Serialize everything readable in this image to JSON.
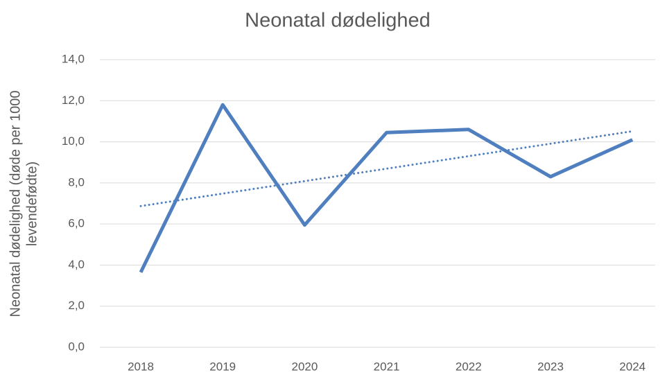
{
  "chart_data": {
    "type": "line",
    "title": "Neonatal dødelighed",
    "ylabel": [
      "Neonatal dødelighed (døde per 1000",
      "levendefødte)"
    ],
    "categories": [
      "2018",
      "2019",
      "2020",
      "2021",
      "2022",
      "2023",
      "2024"
    ],
    "series": [
      {
        "color": "#4f7fbf",
        "values": [
          3.65,
          11.8,
          5.95,
          10.45,
          10.6,
          8.3,
          10.1
        ]
      }
    ],
    "trendline": "linear",
    "ylim": [
      0,
      14
    ],
    "yticks": [
      {
        "value": 0,
        "label": "0,0"
      },
      {
        "value": 2,
        "label": "2,0"
      },
      {
        "value": 4,
        "label": "4,0"
      },
      {
        "value": 6,
        "label": "6,0"
      },
      {
        "value": 8,
        "label": "8,0"
      },
      {
        "value": 10,
        "label": "10,0"
      },
      {
        "value": 12,
        "label": "12,0"
      },
      {
        "value": 14,
        "label": "14,0"
      }
    ],
    "grid": true
  }
}
